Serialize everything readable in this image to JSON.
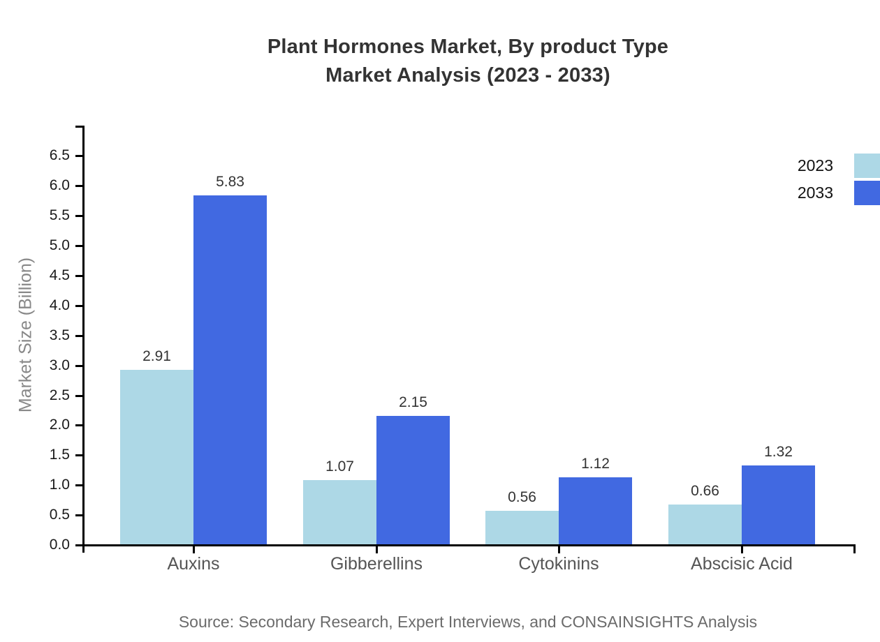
{
  "title": {
    "line1": "Plant Hormones Market, By product Type",
    "line2": "Market Analysis (2023 - 2033)"
  },
  "chart_data": {
    "type": "bar",
    "title": "Plant Hormones Market, By product Type Market Analysis (2023 - 2033)",
    "categories": [
      "Auxins",
      "Gibberellins",
      "Cytokinins",
      "Abscisic Acid"
    ],
    "series": [
      {
        "name": "2023",
        "color": "#ADD8E6",
        "values": [
          2.91,
          1.07,
          0.56,
          0.66
        ]
      },
      {
        "name": "2033",
        "color": "#4169E1",
        "values": [
          5.83,
          2.15,
          1.12,
          1.32
        ]
      }
    ],
    "xlabel": "",
    "ylabel": "Market Size (Billion)",
    "ylim": [
      0.0,
      7.0
    ],
    "yticks": [
      0.0,
      0.5,
      1.0,
      1.5,
      2.0,
      2.5,
      3.0,
      3.5,
      4.0,
      4.5,
      5.0,
      5.5,
      6.0,
      6.5
    ],
    "grid": false,
    "value_labels": true,
    "legend_position": "top-right"
  },
  "legend": {
    "items": [
      {
        "label": "2023",
        "color": "#ADD8E6"
      },
      {
        "label": "2033",
        "color": "#4169E1"
      }
    ]
  },
  "source": "Source: Secondary Research, Expert Interviews, and CONSAINSIGHTS Analysis"
}
